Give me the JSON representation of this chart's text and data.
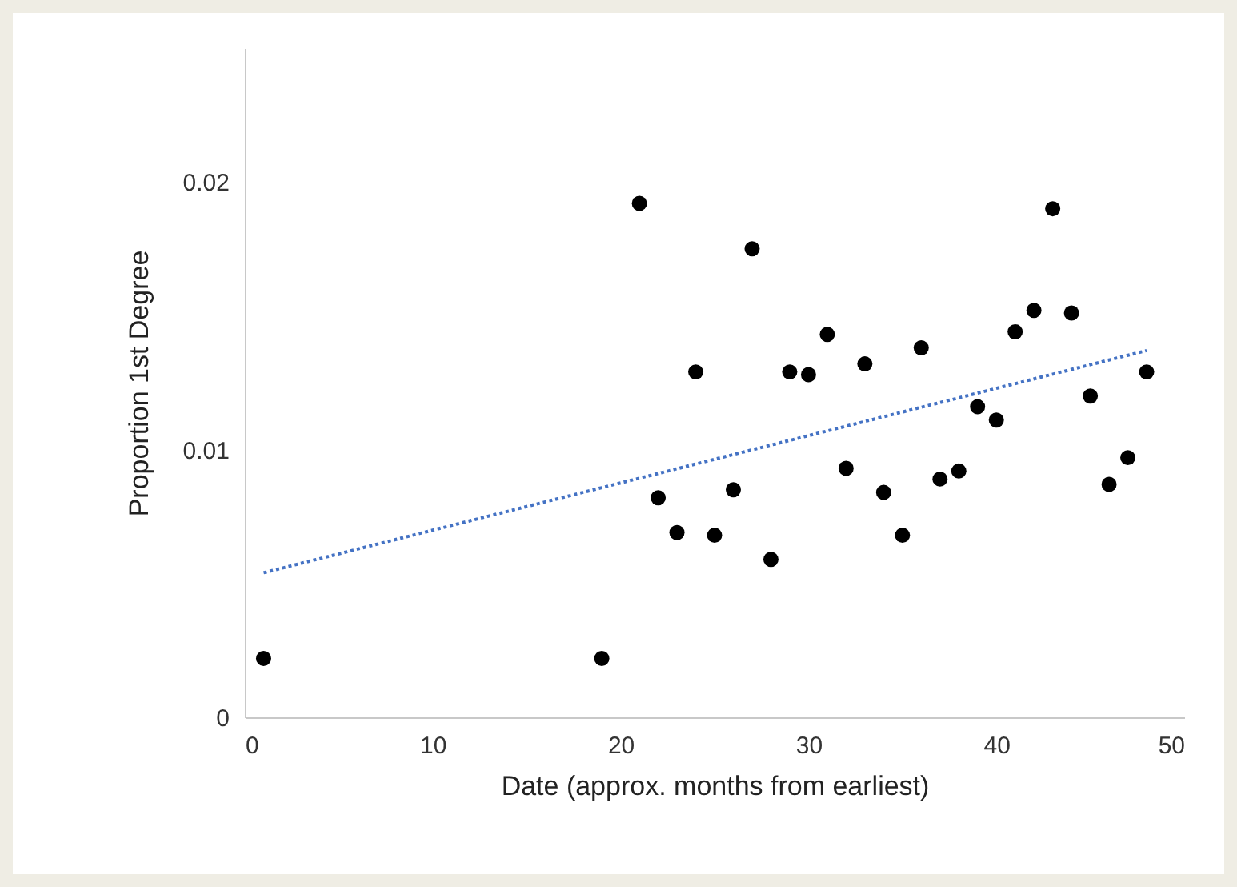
{
  "chart_data": {
    "type": "scatter",
    "xlabel": "Date (approx. months from earliest)",
    "ylabel": "Proportion 1st Degree",
    "xlim": [
      0,
      50
    ],
    "xticks": [
      0,
      10,
      20,
      30,
      40,
      50
    ],
    "ylim": [
      0,
      0.025
    ],
    "yticks": [
      0,
      0.01,
      0.02
    ],
    "grid": false,
    "marker": "circle",
    "series": [
      {
        "color": "#000000",
        "x": [
          1,
          19,
          21,
          22,
          23,
          24,
          25,
          26,
          27,
          28,
          29,
          30,
          31,
          32,
          33,
          34,
          35,
          36,
          37,
          38,
          39,
          40,
          41,
          42,
          43,
          44,
          45,
          46,
          47,
          48
        ],
        "values": [
          0.0022,
          0.0022,
          0.0192,
          0.0082,
          0.0069,
          0.0129,
          0.0068,
          0.0085,
          0.0175,
          0.0059,
          0.0129,
          0.0128,
          0.0143,
          0.0093,
          0.0132,
          0.0084,
          0.0068,
          0.0138,
          0.0089,
          0.0092,
          0.0116,
          0.0111,
          0.0144,
          0.0152,
          0.019,
          0.0151,
          0.012,
          0.0087,
          0.0097,
          0.0129
        ]
      },
      {
        "type": "line",
        "line_style": "dotted",
        "marker": "none",
        "color": "#4472c4",
        "x": [
          1,
          48
        ],
        "values": [
          0.0054,
          0.0137
        ]
      }
    ]
  }
}
